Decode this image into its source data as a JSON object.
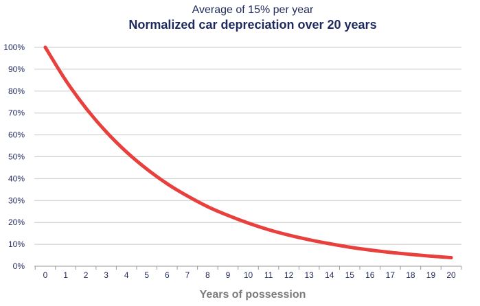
{
  "chart_data": {
    "type": "line",
    "title": "Normalized car depreciation over 20 years",
    "subtitle": "Average of 15% per year",
    "xlabel": "Years of possession",
    "ylabel": "",
    "x": [
      0,
      1,
      2,
      3,
      4,
      5,
      6,
      7,
      8,
      9,
      10,
      11,
      12,
      13,
      14,
      15,
      16,
      17,
      18,
      19,
      20
    ],
    "series": [
      {
        "values": [
          100,
          85,
          72.25,
          61.4,
          52.2,
          44.4,
          37.7,
          32.1,
          27.2,
          23.2,
          19.7,
          16.7,
          14.2,
          12.1,
          10.3,
          8.7,
          7.4,
          6.3,
          5.4,
          4.6,
          3.9
        ]
      }
    ],
    "ylim": [
      0,
      100
    ],
    "xlim": [
      0,
      20
    ],
    "yticks": [
      "0%",
      "10%",
      "20%",
      "30%",
      "40%",
      "50%",
      "60%",
      "70%",
      "80%",
      "90%",
      "100%"
    ],
    "xticks": [
      "0",
      "1",
      "2",
      "3",
      "4",
      "5",
      "6",
      "7",
      "8",
      "9",
      "10",
      "11",
      "12",
      "13",
      "14",
      "15",
      "16",
      "17",
      "18",
      "19",
      "20"
    ],
    "grid": true,
    "line_color": "#e8413d",
    "text_color": "#1f2a5c",
    "grid_color": "#c8c8c8",
    "xlabel_color": "#7a7a7a"
  }
}
